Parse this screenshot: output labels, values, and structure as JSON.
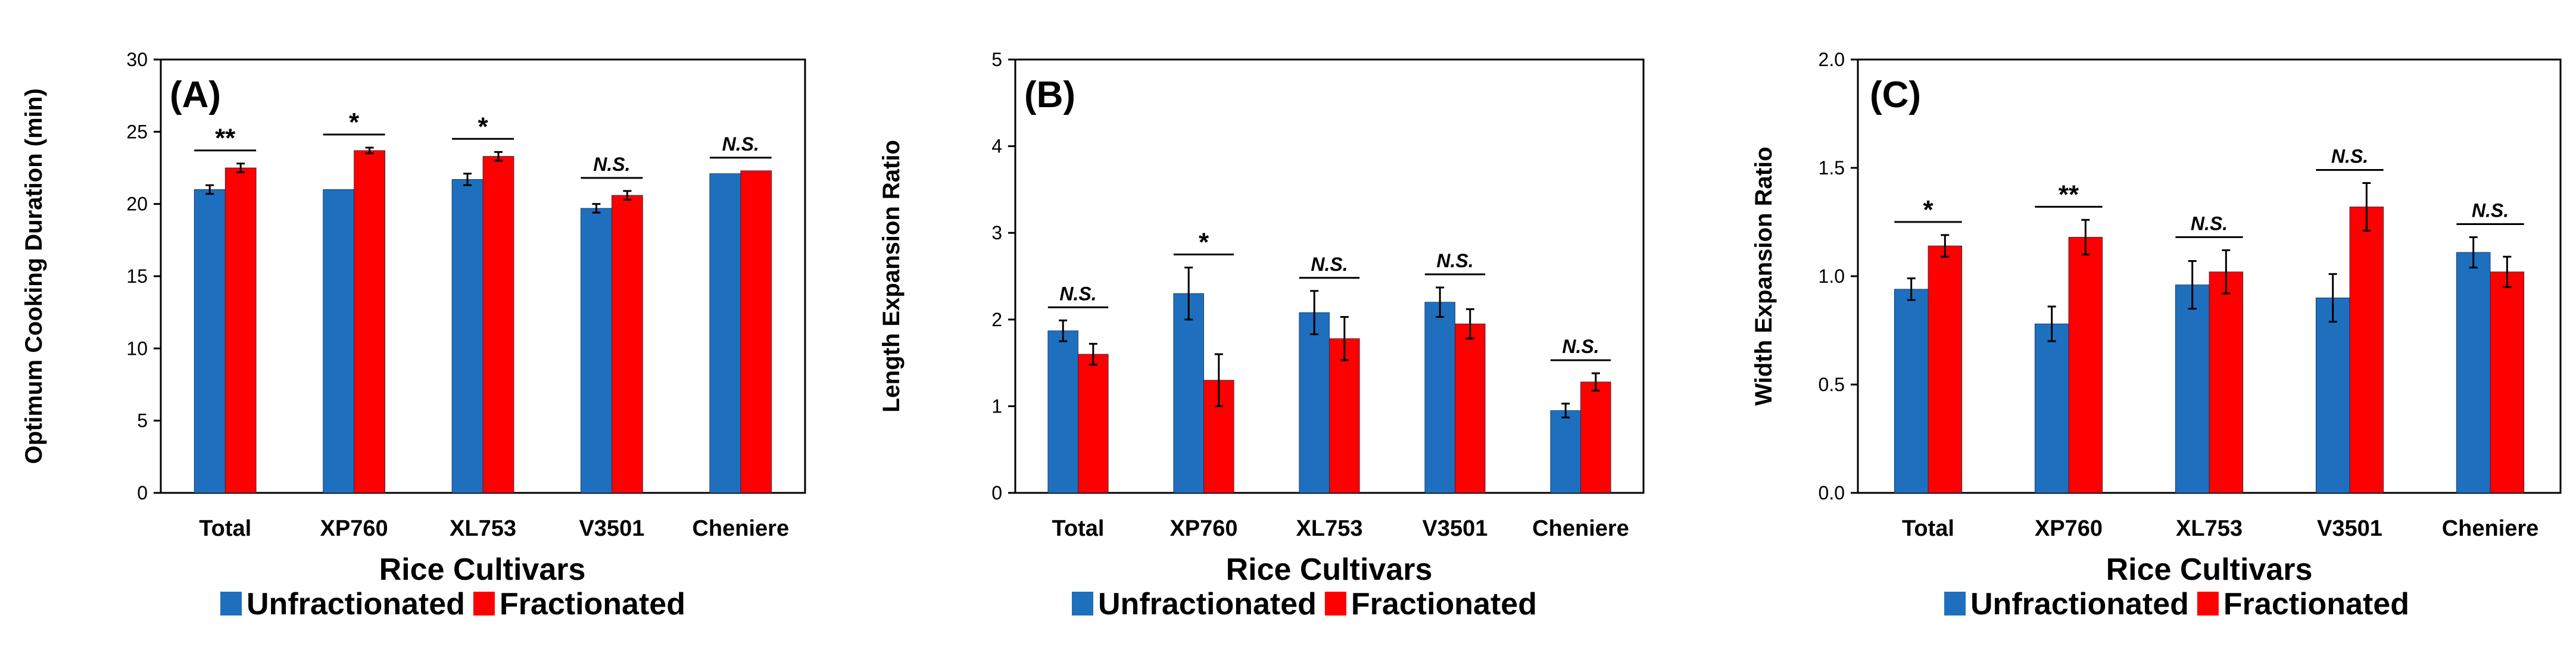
{
  "colors": {
    "unfractionated": "#1F6FBF",
    "fractionated": "#FF0000",
    "axis": "#000000"
  },
  "chart_data": [
    {
      "type": "bar",
      "panel_label": "(A)",
      "categories": [
        "Total",
        "XP760",
        "XL753",
        "V3501",
        "Cheniere"
      ],
      "series": [
        {
          "name": "Unfractionated",
          "values": [
            21.0,
            21.0,
            21.7,
            19.7,
            22.1
          ],
          "errors": [
            0.3,
            0.0,
            0.4,
            0.3,
            0.0
          ]
        },
        {
          "name": "Fractionated",
          "values": [
            22.5,
            23.7,
            23.3,
            20.6,
            22.3
          ],
          "errors": [
            0.3,
            0.2,
            0.3,
            0.3,
            0.0
          ]
        }
      ],
      "significance": [
        "**",
        "*",
        "*",
        "N.S.",
        "N.S."
      ],
      "xlabel": "Rice Cultivars",
      "ylabel": "Optimum Cooking Duration (min)",
      "ylim": [
        0,
        30
      ],
      "yticks": [
        0,
        5,
        10,
        15,
        20,
        25,
        30
      ],
      "ytick_labels": [
        "0",
        "5",
        "10",
        "15",
        "20",
        "25",
        "30"
      ],
      "legend": [
        "Unfractionated",
        "Fractionated"
      ],
      "legend_position": "bottom-center",
      "grid": false
    },
    {
      "type": "bar",
      "panel_label": "(B)",
      "categories": [
        "Total",
        "XP760",
        "XL753",
        "V3501",
        "Cheniere"
      ],
      "series": [
        {
          "name": "Unfractionated",
          "values": [
            1.87,
            2.3,
            2.08,
            2.2,
            0.95
          ],
          "errors": [
            0.12,
            0.3,
            0.25,
            0.17,
            0.08
          ]
        },
        {
          "name": "Fractionated",
          "values": [
            1.6,
            1.3,
            1.78,
            1.95,
            1.28
          ],
          "errors": [
            0.12,
            0.3,
            0.25,
            0.17,
            0.1
          ]
        }
      ],
      "significance": [
        "N.S.",
        "*",
        "N.S.",
        "N.S.",
        "N.S."
      ],
      "xlabel": "Rice Cultivars",
      "ylabel": "Length Expansion Ratio",
      "ylim": [
        0,
        5
      ],
      "yticks": [
        0,
        1,
        2,
        3,
        4,
        5
      ],
      "ytick_labels": [
        "0",
        "1",
        "2",
        "3",
        "4",
        "5"
      ],
      "legend": [
        "Unfractionated",
        "Fractionated"
      ],
      "legend_position": "bottom-center",
      "grid": false
    },
    {
      "type": "bar",
      "panel_label": "(C)",
      "categories": [
        "Total",
        "XP760",
        "XL753",
        "V3501",
        "Cheniere"
      ],
      "series": [
        {
          "name": "Unfractionated",
          "values": [
            0.94,
            0.78,
            0.96,
            0.9,
            1.11
          ],
          "errors": [
            0.05,
            0.08,
            0.11,
            0.11,
            0.07
          ]
        },
        {
          "name": "Fractionated",
          "values": [
            1.14,
            1.18,
            1.02,
            1.32,
            1.02
          ],
          "errors": [
            0.05,
            0.08,
            0.1,
            0.11,
            0.07
          ]
        }
      ],
      "significance": [
        "*",
        "**",
        "N.S.",
        "N.S.",
        "N.S."
      ],
      "xlabel": "Rice Cultivars",
      "ylabel": "Width Expansion Ratio",
      "ylim": [
        0,
        2
      ],
      "yticks": [
        0,
        0.5,
        1,
        1.5,
        2
      ],
      "ytick_labels": [
        "0.0",
        "0.5",
        "1.0",
        "1.5",
        "2.0"
      ],
      "legend": [
        "Unfractionated",
        "Fractionated"
      ],
      "legend_position": "bottom-center",
      "grid": false
    }
  ]
}
